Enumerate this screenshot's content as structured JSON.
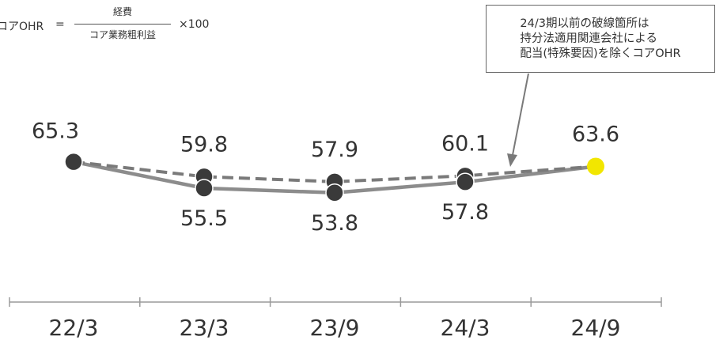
{
  "formula": {
    "lhs": "コアOHR",
    "eq": "=",
    "numerator": "経費",
    "denominator": "コア業務粗利益",
    "multiplier": "×100"
  },
  "note": {
    "lines": [
      "24/3期以前の破線箇所は",
      "持分法適用関連会社による",
      "配当(特殊要因)を除くコアOHR"
    ]
  },
  "colors": {
    "solid_line": "#8c8c8c",
    "dashed_line": "#7a7a7a",
    "marker": "#3a3a3a",
    "highlight": "#f2e600",
    "highlight_label": "#b5a800"
  },
  "chart_data": {
    "type": "line",
    "categories": [
      "22/3",
      "23/3",
      "23/9",
      "24/3",
      "24/9"
    ],
    "series": [
      {
        "values": [
          65.3,
          55.5,
          53.8,
          57.8,
          63.6
        ],
        "style": "solid"
      },
      {
        "values": [
          65.3,
          59.8,
          57.9,
          60.1,
          63.6
        ],
        "style": "dashed"
      }
    ],
    "labels_dashed": [
      "65.3",
      "59.8",
      "57.9",
      "60.1",
      "63.6"
    ],
    "labels_solid": [
      "",
      "55.5",
      "53.8",
      "57.8",
      ""
    ],
    "highlight_index": 4
  }
}
